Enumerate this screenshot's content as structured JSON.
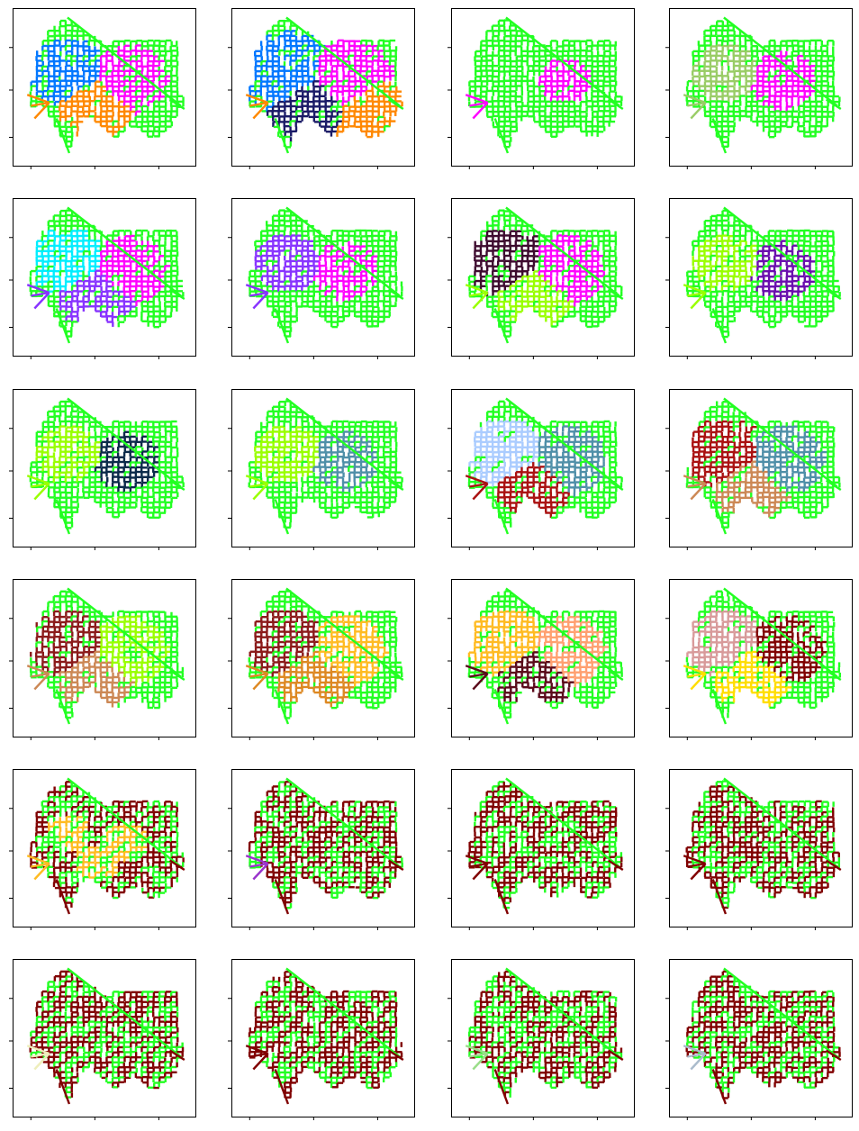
{
  "chart_data": {
    "type": "small-multiples-network-map",
    "layout": {
      "rows": 6,
      "cols": 4
    },
    "title": "",
    "xlabel": "",
    "ylabel": "",
    "tick_labels_shown": false,
    "grid": false,
    "legend": "none",
    "base_color": "#22ff22",
    "panels": [
      {
        "index": 1,
        "colors": [
          "#22ff22",
          "#ff00ff",
          "#0077ff",
          "#ff8800"
        ]
      },
      {
        "index": 2,
        "colors": [
          "#22ff22",
          "#ff00ff",
          "#0077ff",
          "#1a1a66",
          "#ff8800"
        ]
      },
      {
        "index": 3,
        "colors": [
          "#22ff22",
          "#ff00ff"
        ]
      },
      {
        "index": 4,
        "colors": [
          "#22ff22",
          "#ff00ff",
          "#99cc66"
        ]
      },
      {
        "index": 5,
        "colors": [
          "#22ff22",
          "#ff00ff",
          "#00eeff",
          "#8833ff"
        ]
      },
      {
        "index": 6,
        "colors": [
          "#22ff22",
          "#ff00ff",
          "#8833ff"
        ]
      },
      {
        "index": 7,
        "colors": [
          "#22ff22",
          "#ff00ff",
          "#3d0a2e",
          "#99ff00"
        ]
      },
      {
        "index": 8,
        "colors": [
          "#22ff22",
          "#6a0dad",
          "#99ff00"
        ]
      },
      {
        "index": 9,
        "colors": [
          "#22ff22",
          "#0b2a4a",
          "#99ff00"
        ]
      },
      {
        "index": 10,
        "colors": [
          "#22ff22",
          "#4f8fa8",
          "#99ff00"
        ]
      },
      {
        "index": 11,
        "colors": [
          "#22ff22",
          "#4f8fa8",
          "#aaccff",
          "#aa1111"
        ]
      },
      {
        "index": 12,
        "colors": [
          "#22ff22",
          "#4f8fa8",
          "#aa1111",
          "#cc8855"
        ]
      },
      {
        "index": 13,
        "colors": [
          "#22ff22",
          "#99ff00",
          "#8b1a1a",
          "#cc8855"
        ]
      },
      {
        "index": 14,
        "colors": [
          "#22ff22",
          "#ffbb22",
          "#8b1a1a",
          "#dd8822"
        ]
      },
      {
        "index": 15,
        "colors": [
          "#22ff22",
          "#ffa070",
          "#ffbb22",
          "#5a0a1a"
        ]
      },
      {
        "index": 16,
        "colors": [
          "#22ff22",
          "#800000",
          "#d89a9a",
          "#ffdd00"
        ]
      },
      {
        "index": 17,
        "colors": [
          "#22ff22",
          "#800000",
          "#d89a9a",
          "#ffbb22"
        ]
      },
      {
        "index": 18,
        "colors": [
          "#22ff22",
          "#800000",
          "#9933cc"
        ]
      },
      {
        "index": 19,
        "colors": [
          "#22ff22",
          "#800000"
        ]
      },
      {
        "index": 20,
        "colors": [
          "#22ff22",
          "#800000"
        ]
      },
      {
        "index": 21,
        "colors": [
          "#22ff22",
          "#800000",
          "#eeeebb"
        ]
      },
      {
        "index": 22,
        "colors": [
          "#22ff22",
          "#800000"
        ]
      },
      {
        "index": 23,
        "colors": [
          "#22ff22",
          "#800000",
          "#99dd88"
        ]
      },
      {
        "index": 24,
        "colors": [
          "#22ff22",
          "#800000",
          "#aabbcc"
        ]
      }
    ]
  }
}
